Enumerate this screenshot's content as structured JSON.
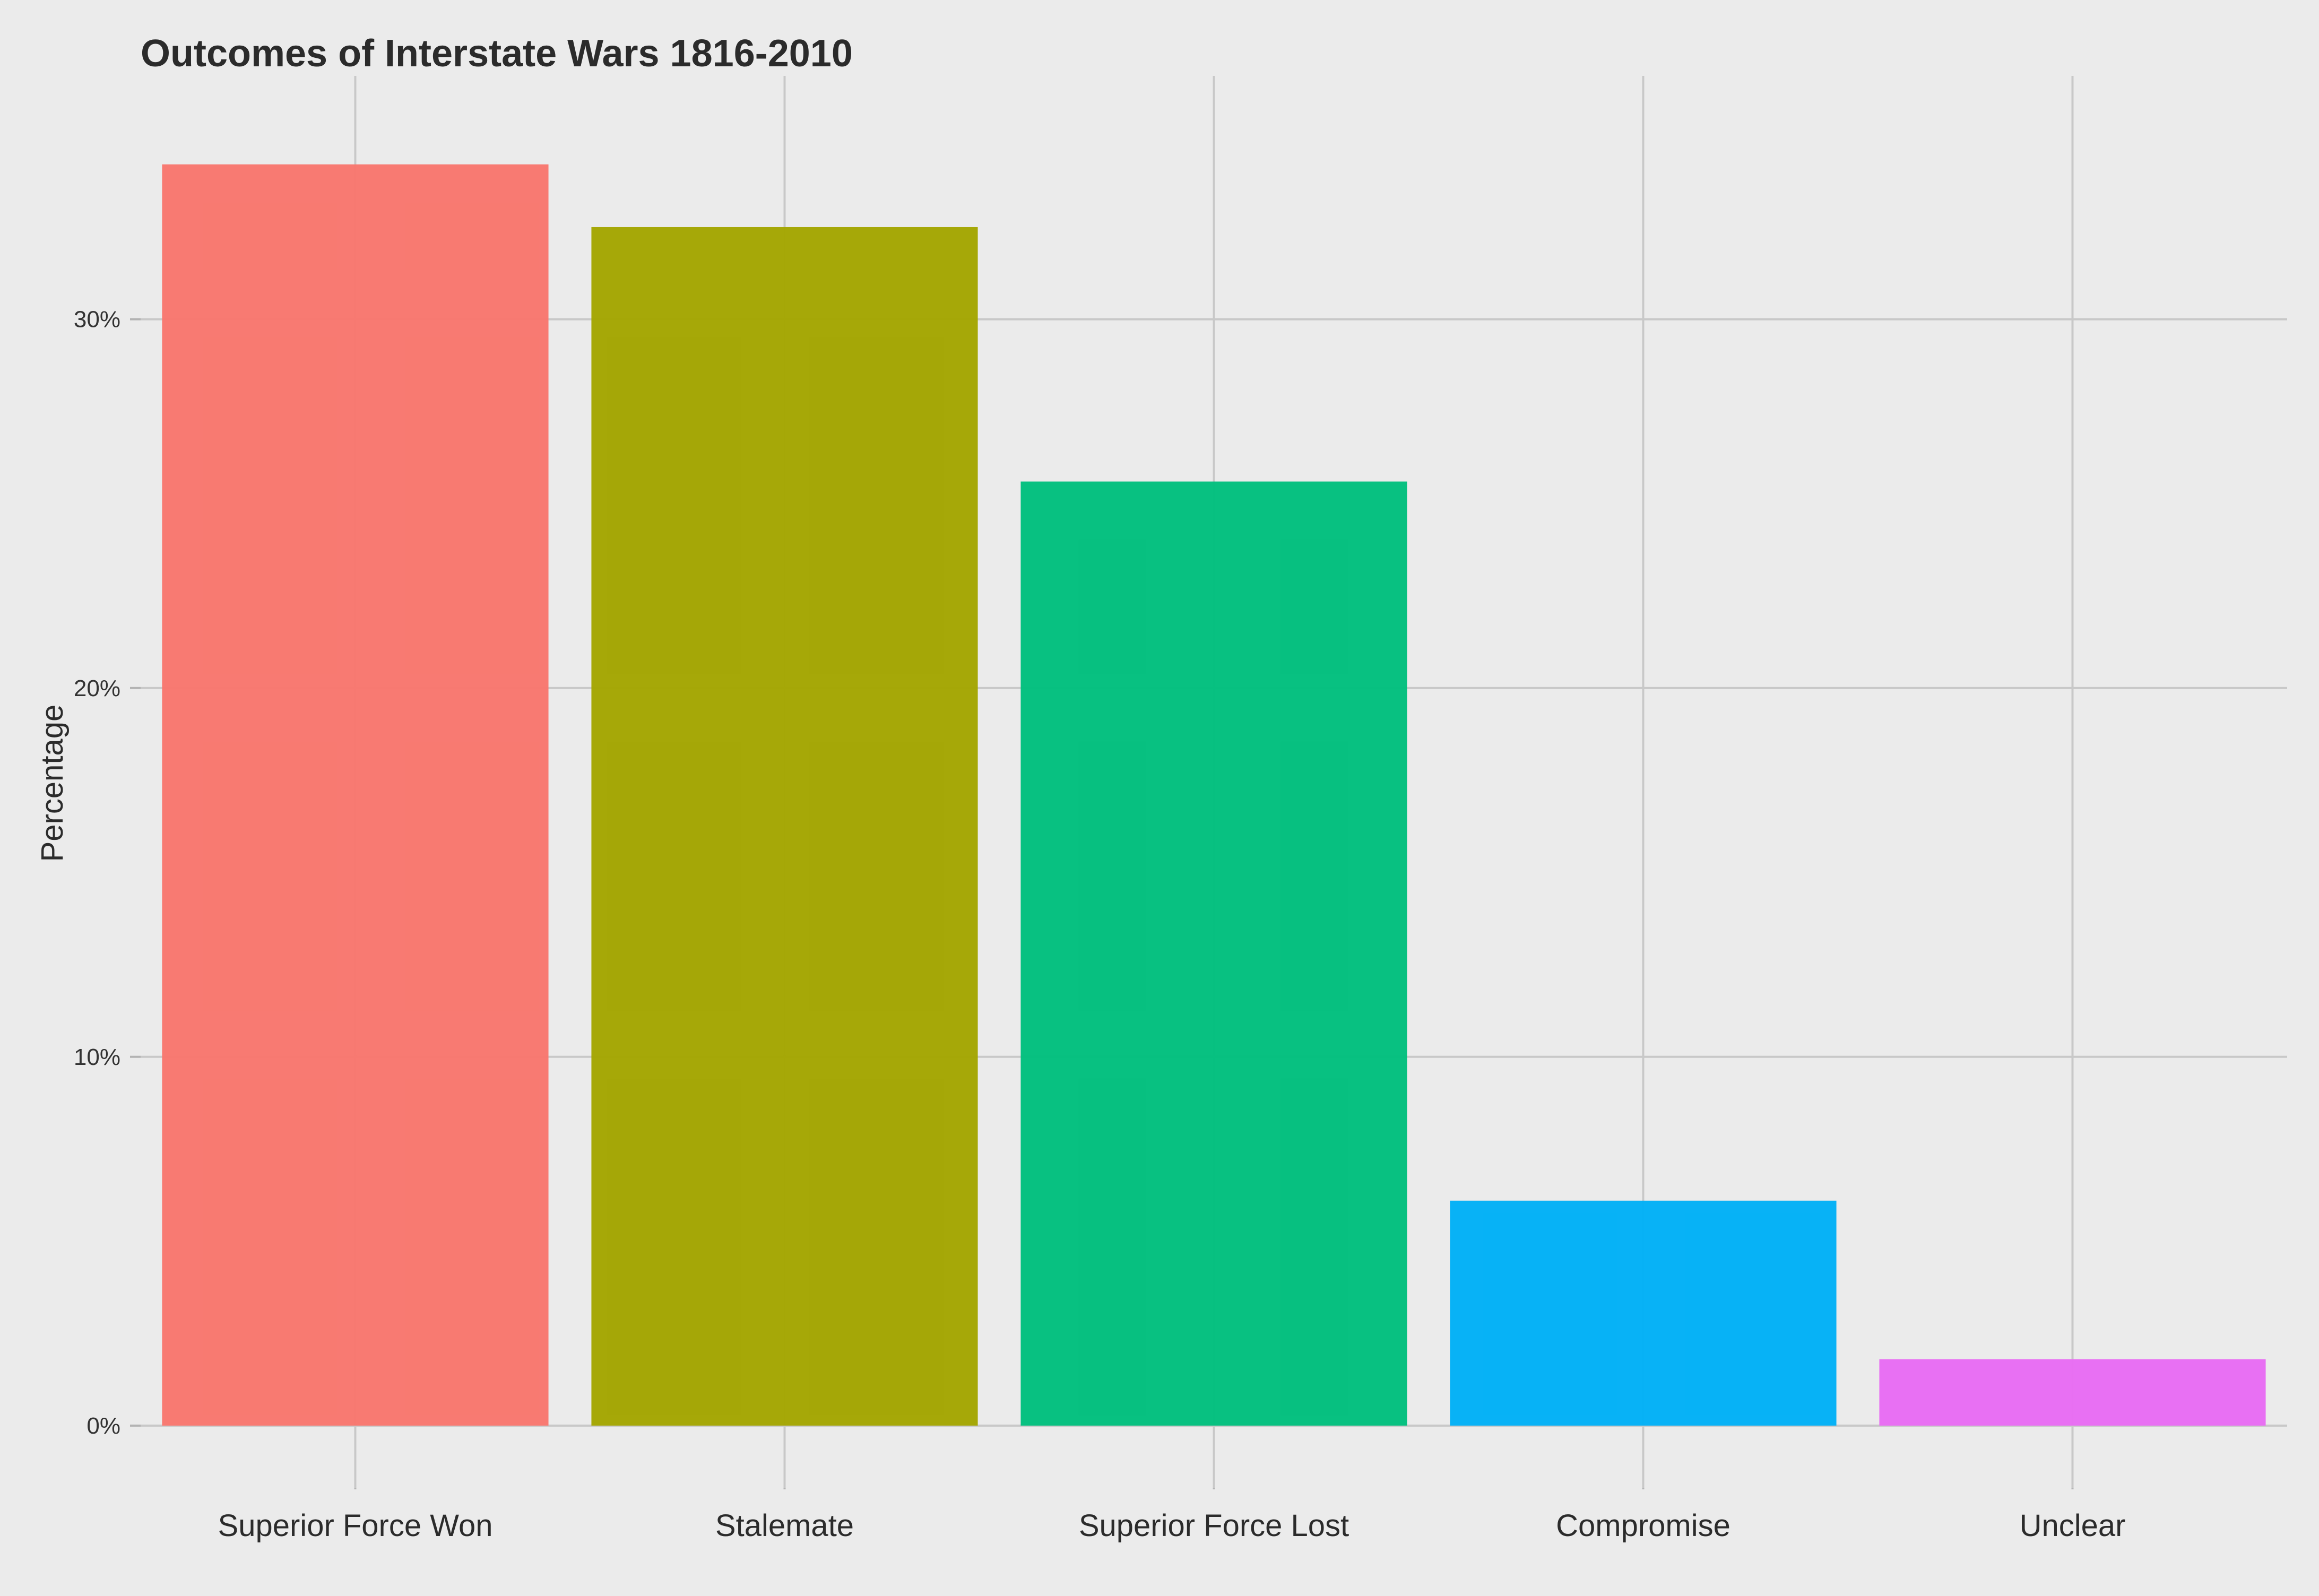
{
  "chart_data": {
    "type": "bar",
    "title": "Outcomes of Interstate Wars 1816-2010",
    "xlabel": "",
    "ylabel": "Percentage",
    "categories": [
      "Superior Force Won",
      "Stalemate",
      "Superior Force Lost",
      "Compromise",
      "Unclear"
    ],
    "values": [
      34.2,
      32.5,
      25.6,
      6.1,
      1.8
    ],
    "value_unit": "%",
    "colors": [
      "#F8766D",
      "#A3A500",
      "#00BF7D",
      "#00B0F6",
      "#E76BF3"
    ],
    "ylim": [
      -1.7,
      36.6
    ],
    "y_ticks": [
      0,
      10,
      20,
      30
    ],
    "y_tick_labels": [
      "0%",
      "10%",
      "20%",
      "30%"
    ],
    "grid": true,
    "legend": "none"
  }
}
